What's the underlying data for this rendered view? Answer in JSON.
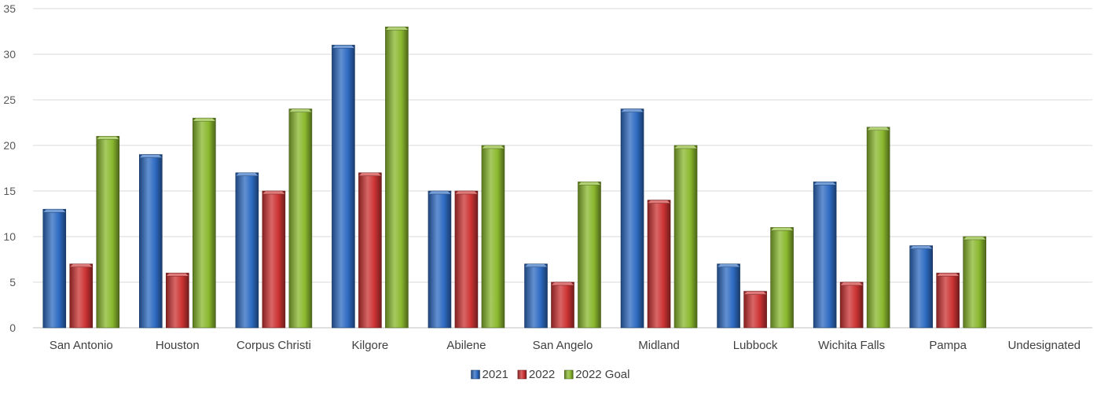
{
  "chart_data": {
    "type": "bar",
    "title": "",
    "xlabel": "",
    "ylabel": "",
    "ylim": [
      0,
      35
    ],
    "yticks": [
      0,
      5,
      10,
      15,
      20,
      25,
      30,
      35
    ],
    "grid": true,
    "legend_position": "bottom",
    "categories": [
      "San Antonio",
      "Houston",
      "Corpus Christi",
      "Kilgore",
      "Abilene",
      "San Angelo",
      "Midland",
      "Lubbock",
      "Wichita Falls",
      "Pampa",
      "Undesignated"
    ],
    "series": [
      {
        "name": "2021",
        "color": "#2e6bc2",
        "values": [
          13,
          19,
          17,
          31,
          15,
          7,
          24,
          7,
          16,
          9,
          0
        ]
      },
      {
        "name": "2022",
        "color": "#cc3333",
        "values": [
          7,
          6,
          15,
          17,
          15,
          5,
          14,
          4,
          5,
          6,
          0
        ]
      },
      {
        "name": "2022 Goal",
        "color": "#8ab82e",
        "values": [
          21,
          23,
          24,
          33,
          20,
          16,
          20,
          11,
          22,
          10,
          0
        ]
      }
    ]
  }
}
